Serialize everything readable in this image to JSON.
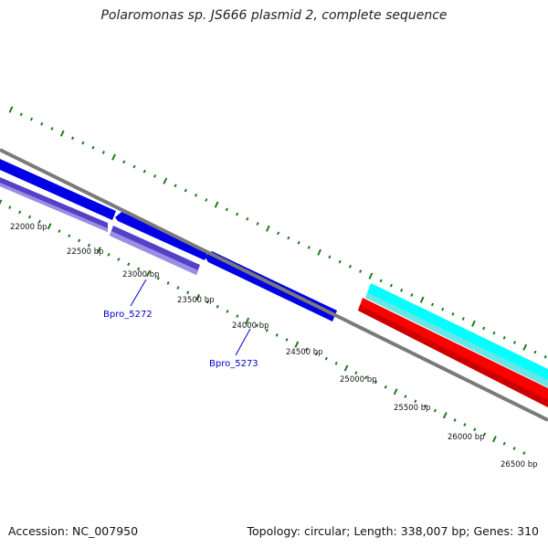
{
  "title": "Polaromonas sp. JS666 plasmid 2, complete sequence",
  "accession": "Accession: NC_007950",
  "topology": "Topology: circular; Length: 338,007 bp; Genes: 310",
  "colors": {
    "backbone": "#7a7a7a",
    "cds_forward": "#0000e6",
    "cds_reverse": "#6b5bd4",
    "feature_cyan": "#00ffff",
    "feature_red": "#ff0000",
    "tick": "#1e7a1e",
    "gene_label": "#0000cc"
  },
  "ruler_labels": [
    "22000 bp",
    "22500 bp",
    "23000 bp",
    "23500 bp",
    "24000 bp",
    "24500 bp",
    "25000 bp",
    "25500 bp",
    "26000 bp",
    "26500 bp"
  ],
  "gene_labels": [
    "Bpro_5272",
    "Bpro_5273"
  ]
}
